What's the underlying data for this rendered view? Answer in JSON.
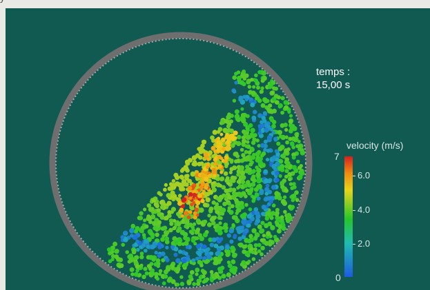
{
  "stray_text": "y",
  "time_label": {
    "line1": "temps :",
    "line2": "15,00 s"
  },
  "legend": {
    "title": "velocity (m/s)",
    "max_label": "7",
    "min_label": "0",
    "ticks": [
      "6.0",
      "4.0",
      "2.0"
    ],
    "colors": {
      "high": "#d42020",
      "mid_high": "#f08a10",
      "mid": "#e8d41a",
      "mid_low": "#27c52a",
      "low": "#1fbcb0",
      "lowest": "#1d5be0"
    }
  },
  "background_color": "#115a52",
  "drum_color": "#8a8a8a"
}
